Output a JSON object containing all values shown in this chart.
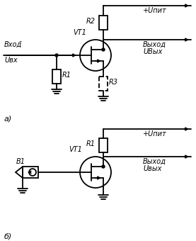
{
  "bg_color": "#ffffff",
  "line_color": "#000000",
  "fig_width": 2.77,
  "fig_height": 3.4,
  "dpi": 100,
  "circuit_a": {
    "label_a": "а)",
    "input_label1": "Вход̄",
    "input_label2": "Uвх",
    "output_label1": "+Uпит",
    "output_label2": "Выход",
    "output_label3": "UВых",
    "vt_label": "VT1",
    "r1_label": "R1",
    "r2_label": "R2",
    "r3_label": "R3"
  },
  "circuit_b": {
    "label_b": "б)",
    "b1_label": "B1",
    "output_label1": "+Uпит",
    "output_label2": "Выход",
    "output_label3": "Uвых",
    "vt_label": "VT1",
    "r1_label": "R1"
  }
}
